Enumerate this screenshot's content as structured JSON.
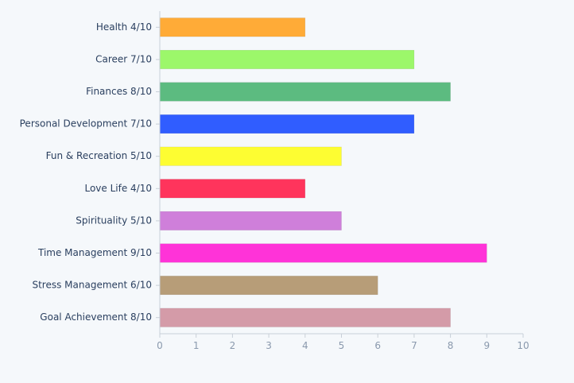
{
  "chart_data": {
    "type": "bar",
    "orientation": "horizontal",
    "title": "",
    "xlabel": "",
    "ylabel": "",
    "xlim": [
      0,
      10
    ],
    "grid": false,
    "legend": "none",
    "x_ticks": [
      "0",
      "1",
      "2",
      "3",
      "4",
      "5",
      "6",
      "7",
      "8",
      "9",
      "10"
    ],
    "categories": [
      "Health 4/10",
      "Career 7/10",
      "Finances 8/10",
      "Personal Development 7/10",
      "Fun & Recreation 5/10",
      "Love Life 4/10",
      "Spirituality 5/10",
      "Time Management 9/10",
      "Stress Management 6/10",
      "Goal Achievement 8/10"
    ],
    "values": [
      4,
      7,
      8,
      7,
      5,
      4,
      5,
      9,
      6,
      8
    ],
    "colors": [
      "#ffab37",
      "#9cf76a",
      "#5cbb80",
      "#305dff",
      "#fdfd32",
      "#ff345c",
      "#cf7fda",
      "#ff33d8",
      "#b79d78",
      "#d49ba8"
    ]
  }
}
